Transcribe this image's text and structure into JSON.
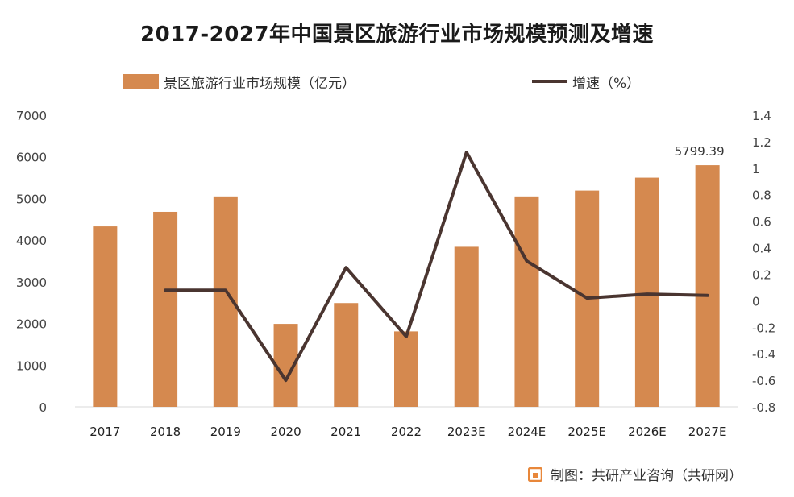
{
  "title": "2017-2027年中国景区旅游行业市场规模预测及增速",
  "legend": {
    "bar_label": "景区旅游行业市场规模（亿元）",
    "line_label": "增速（%）"
  },
  "footer": {
    "text": "制图：共研产业咨询（共研网）",
    "icon": "brand-logo-icon"
  },
  "colors": {
    "bar": "#D5894F",
    "line": "#4A3530",
    "logo": "#E8873A"
  },
  "chart_data": {
    "type": "bar",
    "title": "2017-2027年中国景区旅游行业市场规模预测及增速",
    "categories": [
      "2017",
      "2018",
      "2019",
      "2020",
      "2021",
      "2022",
      "2023E",
      "2024E",
      "2025E",
      "2026E",
      "2027E"
    ],
    "series": [
      {
        "name": "景区旅游行业市场规模（亿元）",
        "type": "bar",
        "axis": "left",
        "values": [
          4330,
          4680,
          5050,
          1990,
          2490,
          1810,
          3840,
          5050,
          5190,
          5500,
          5799.39
        ]
      },
      {
        "name": "增速（%）",
        "type": "line",
        "axis": "right",
        "values": [
          null,
          0.08,
          0.08,
          -0.6,
          0.25,
          -0.27,
          1.12,
          0.3,
          0.02,
          0.05,
          0.04
        ]
      }
    ],
    "annotations": [
      {
        "category": "2027E",
        "text": "5799.39"
      }
    ],
    "y_left": {
      "ylim": [
        0,
        7000
      ],
      "ticks": [
        "0",
        "1000",
        "2000",
        "3000",
        "4000",
        "5000",
        "6000",
        "7000"
      ]
    },
    "y_right": {
      "ylim": [
        -0.8,
        1.4
      ],
      "ticks": [
        "-0.8",
        "-0.6",
        "-0.4",
        "-0.2",
        "0",
        "0.2",
        "0.4",
        "0.6",
        "0.8",
        "1",
        "1.2",
        "1.4"
      ]
    },
    "grid": false,
    "legend_position": "top"
  }
}
